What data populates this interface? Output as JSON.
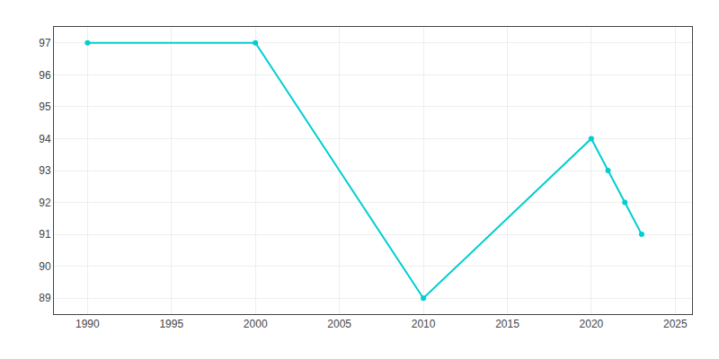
{
  "chart_data": {
    "type": "line",
    "x": [
      1990,
      2000,
      2010,
      2020,
      2021,
      2022,
      2023
    ],
    "values": [
      97,
      97,
      89,
      94,
      93,
      92,
      91
    ],
    "color": "#00CED1",
    "marker": "circle",
    "xlim": [
      1988,
      2026
    ],
    "ylim": [
      88.5,
      97.5
    ],
    "xticks": [
      1990,
      1995,
      2000,
      2005,
      2010,
      2015,
      2020,
      2025
    ],
    "yticks": [
      89,
      90,
      91,
      92,
      93,
      94,
      95,
      96,
      97
    ],
    "grid": true
  }
}
